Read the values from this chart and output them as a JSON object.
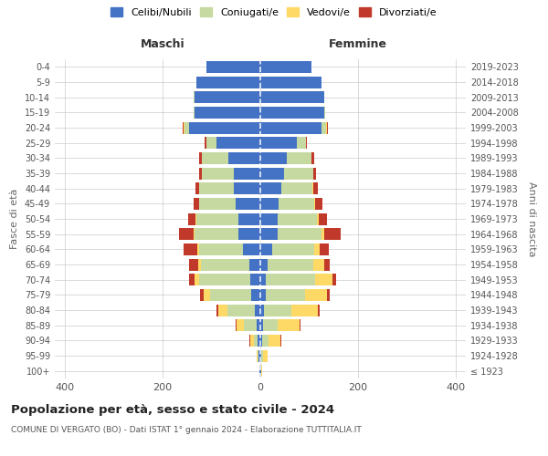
{
  "age_groups": [
    "100+",
    "95-99",
    "90-94",
    "85-89",
    "80-84",
    "75-79",
    "70-74",
    "65-69",
    "60-64",
    "55-59",
    "50-54",
    "45-49",
    "40-44",
    "35-39",
    "30-34",
    "25-29",
    "20-24",
    "15-19",
    "10-14",
    "5-9",
    "0-4"
  ],
  "birth_years": [
    "≤ 1923",
    "1924-1928",
    "1929-1933",
    "1934-1938",
    "1939-1943",
    "1944-1948",
    "1949-1953",
    "1954-1958",
    "1959-1963",
    "1964-1968",
    "1969-1973",
    "1974-1978",
    "1979-1983",
    "1984-1988",
    "1989-1993",
    "1994-1998",
    "1999-2003",
    "2004-2008",
    "2009-2013",
    "2014-2018",
    "2019-2023"
  ],
  "maschi": {
    "celibi": [
      2,
      3,
      5,
      8,
      12,
      18,
      20,
      22,
      35,
      45,
      45,
      50,
      55,
      55,
      65,
      90,
      145,
      135,
      135,
      130,
      110
    ],
    "coniugati": [
      0,
      2,
      8,
      25,
      55,
      85,
      105,
      100,
      90,
      90,
      85,
      75,
      70,
      65,
      55,
      20,
      10,
      2,
      2,
      0,
      0
    ],
    "vedovi": [
      0,
      3,
      8,
      15,
      18,
      12,
      10,
      5,
      3,
      2,
      2,
      1,
      0,
      0,
      0,
      0,
      2,
      0,
      0,
      0,
      0
    ],
    "divorziati": [
      0,
      0,
      2,
      2,
      5,
      8,
      10,
      18,
      28,
      30,
      15,
      10,
      8,
      5,
      5,
      3,
      2,
      0,
      0,
      0,
      0
    ]
  },
  "femmine": {
    "nubili": [
      2,
      2,
      4,
      6,
      8,
      12,
      12,
      14,
      25,
      35,
      35,
      38,
      42,
      48,
      55,
      75,
      125,
      130,
      130,
      125,
      105
    ],
    "coniugate": [
      0,
      4,
      12,
      30,
      55,
      80,
      100,
      95,
      85,
      90,
      80,
      72,
      65,
      60,
      50,
      18,
      10,
      2,
      1,
      0,
      0
    ],
    "vedove": [
      2,
      8,
      25,
      45,
      55,
      45,
      35,
      22,
      12,
      5,
      4,
      2,
      1,
      0,
      0,
      0,
      2,
      0,
      0,
      0,
      0
    ],
    "divorziate": [
      0,
      0,
      2,
      2,
      4,
      5,
      8,
      10,
      18,
      35,
      18,
      15,
      10,
      5,
      5,
      2,
      2,
      0,
      0,
      0,
      0
    ]
  },
  "colors": {
    "celibi": "#4472c4",
    "coniugati": "#c5d9a0",
    "vedovi": "#ffd966",
    "divorziati": "#c0392b"
  },
  "title": "Popolazione per età, sesso e stato civile - 2024",
  "subtitle": "COMUNE DI VERGATO (BO) - Dati ISTAT 1° gennaio 2024 - Elaborazione TUTTITALIA.IT",
  "xlabel_maschi": "Maschi",
  "xlabel_femmine": "Femmine",
  "ylabel": "Fasce di età",
  "ylabel_right": "Anni di nascita",
  "legend_labels": [
    "Celibi/Nubili",
    "Coniugati/e",
    "Vedovi/e",
    "Divorziati/e"
  ],
  "xlim": 420,
  "background_color": "#ffffff"
}
